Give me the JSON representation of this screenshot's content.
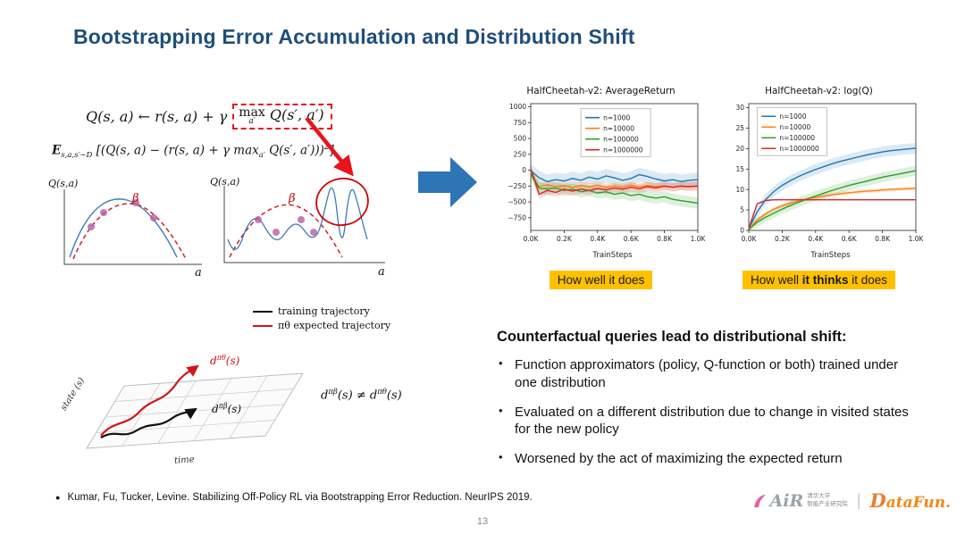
{
  "slide": {
    "title": "Bootstrapping Error Accumulation and Distribution Shift"
  },
  "equations": {
    "eq1_left": "Q(s, a) ← r(s, a) + γ",
    "eq1_max": "max",
    "eq1_max_sub": "a′",
    "eq1_tail": "Q(s′, a′)",
    "eq2_E": "E",
    "eq2_sub": "s,a,s′∼D",
    "eq2_body": "[(Q(s, a) − (r(s, a) + γ max",
    "eq2_max_sub": "a′",
    "eq2_tail": " Q(s′, a′)))",
    "eq2_sup": "2",
    "eq2_close": "]"
  },
  "sketches": {
    "q_label": "Q(s,a)",
    "a_label": "a",
    "beta": "β"
  },
  "traj": {
    "legend_black": "training trajectory",
    "legend_red": "πθ expected trajectory",
    "d": "d",
    "pi_theta": "πθ",
    "pi_beta": "πβ",
    "of_s": "(s)",
    "neq": "≠",
    "time_label": "time",
    "state_label": "state (s)"
  },
  "chart_data": [
    {
      "type": "line",
      "title": "HalfCheetah-v2: AverageReturn",
      "xlabel": "TrainSteps",
      "xlim": [
        0,
        1
      ],
      "ylim": [
        -950,
        1050
      ],
      "x_tick_values": [
        0,
        0.2,
        0.4,
        0.6,
        0.8,
        1.0
      ],
      "x_ticks": [
        "0.0K",
        "0.2K",
        "0.4K",
        "0.6K",
        "0.8K",
        "1.0K"
      ],
      "y_tick_values": [
        1000,
        750,
        500,
        250,
        0,
        -250,
        -500,
        -750
      ],
      "y_tick_labels": [
        "1000",
        "750",
        "500",
        "250",
        "0",
        "−250",
        "−500",
        "−750"
      ],
      "legend_position": "top-center",
      "legend_frac": [
        0.3,
        0.04
      ],
      "grid": false,
      "colors": [
        "#1f77b4",
        "#ff7f0e",
        "#2ca02c",
        "#d62728"
      ],
      "x": [
        0,
        0.05,
        0.1,
        0.15,
        0.2,
        0.25,
        0.3,
        0.35,
        0.4,
        0.45,
        0.5,
        0.55,
        0.6,
        0.65,
        0.7,
        0.75,
        0.8,
        0.85,
        0.9,
        0.95,
        1.0
      ],
      "series": [
        {
          "name": "n=1000",
          "band": 110,
          "values": [
            -10,
            -120,
            -180,
            -150,
            -170,
            -130,
            -160,
            -110,
            -140,
            -90,
            -120,
            -160,
            -130,
            -70,
            -100,
            -140,
            -170,
            -150,
            -180,
            -160,
            -150
          ]
        },
        {
          "name": "n=10000",
          "band": 60,
          "values": [
            -40,
            -260,
            -230,
            -260,
            -240,
            -270,
            -240,
            -260,
            -240,
            -270,
            -250,
            -270,
            -240,
            -260,
            -240,
            -260,
            -250,
            -270,
            -250,
            -260,
            -250
          ]
        },
        {
          "name": "n=100000",
          "band": 90,
          "values": [
            -60,
            -280,
            -300,
            -280,
            -320,
            -300,
            -340,
            -320,
            -360,
            -340,
            -380,
            -360,
            -400,
            -380,
            -420,
            -440,
            -420,
            -460,
            -480,
            -500,
            -520
          ]
        },
        {
          "name": "n=1000000",
          "band": 70,
          "values": [
            20,
            -380,
            -320,
            -350,
            -300,
            -330,
            -300,
            -320,
            -290,
            -310,
            -280,
            -300,
            -270,
            -290,
            -260,
            -280,
            -250,
            -270,
            -250,
            -260,
            -250
          ]
        }
      ]
    },
    {
      "type": "line",
      "title": "HalfCheetah-v2: log(Q)",
      "xlabel": "TrainSteps",
      "xlim": [
        0,
        1
      ],
      "ylim": [
        0,
        31
      ],
      "x_tick_values": [
        0,
        0.2,
        0.4,
        0.6,
        0.8,
        1.0
      ],
      "x_ticks": [
        "0.0K",
        "0.2K",
        "0.4K",
        "0.6K",
        "0.8K",
        "1.0K"
      ],
      "y_tick_values": [
        0,
        5,
        10,
        15,
        20,
        25,
        30
      ],
      "y_tick_labels": [
        "0",
        "5",
        "10",
        "15",
        "20",
        "25",
        "30"
      ],
      "legend_position": "top-left",
      "legend_frac": [
        0.05,
        0.03
      ],
      "grid": false,
      "colors": [
        "#1f77b4",
        "#ff7f0e",
        "#2ca02c",
        "#d62728"
      ],
      "x": [
        0,
        0.05,
        0.1,
        0.15,
        0.2,
        0.25,
        0.3,
        0.35,
        0.4,
        0.45,
        0.5,
        0.55,
        0.6,
        0.65,
        0.7,
        0.75,
        0.8,
        0.85,
        0.9,
        0.95,
        1.0
      ],
      "series": [
        {
          "name": "n=1000",
          "band": 1.3,
          "values": [
            0.5,
            4.5,
            7.5,
            9.5,
            11,
            12.2,
            13.2,
            14.1,
            14.9,
            15.6,
            16.3,
            16.9,
            17.4,
            17.9,
            18.4,
            18.8,
            19.2,
            19.5,
            19.7,
            19.9,
            20.1
          ]
        },
        {
          "name": "n=10000",
          "band": 0.5,
          "values": [
            0.3,
            2.5,
            4,
            5.2,
            6,
            6.7,
            7.2,
            7.7,
            8.1,
            8.4,
            8.7,
            9.0,
            9.2,
            9.4,
            9.6,
            9.7,
            9.9,
            10.0,
            10.1,
            10.2,
            10.3
          ]
        },
        {
          "name": "n=100000",
          "band": 1.2,
          "values": [
            0.2,
            2,
            3.2,
            4.2,
            5.2,
            6.1,
            6.9,
            7.7,
            8.4,
            9.1,
            9.8,
            10.4,
            11.0,
            11.5,
            12.0,
            12.5,
            13.0,
            13.4,
            13.8,
            14.2,
            14.6
          ]
        },
        {
          "name": "n=1000000",
          "band": 0.2,
          "values": [
            0.5,
            6.5,
            7.3,
            7.5,
            7.5,
            7.5,
            7.5,
            7.5,
            7.5,
            7.5,
            7.5,
            7.5,
            7.5,
            7.5,
            7.5,
            7.5,
            7.5,
            7.5,
            7.5,
            7.5,
            7.5
          ]
        }
      ]
    }
  ],
  "captions": {
    "left": "How well it does",
    "right_pre": "How well ",
    "right_bold": "it thinks",
    "right_post": " it does"
  },
  "right_panel": {
    "heading": "Counterfactual queries lead to distributional shift:",
    "bullet_char": "•",
    "bullets": [
      "Function approximators (policy, Q-function or both) trained under one distribution",
      "Evaluated on a different distribution due to change in visited states for the new policy",
      "Worsened by the act of maximizing the expected return"
    ]
  },
  "footer": {
    "bullet": "●",
    "reference": "Kumar, Fu, Tucker, Levine. Stabilizing Off-Policy RL via Bootstrapping Error Reduction. NeurIPS 2019.",
    "page_number": "13"
  },
  "logos": {
    "air_text": "AiR",
    "air_cn_1": "清华大学",
    "air_cn_2": "智能产业研究院",
    "separator": "|",
    "datafun_d": "D",
    "datafun_rest": "ataFun."
  },
  "colors": {
    "title": "#1F4E79",
    "highlight_yellow": "#FFC000",
    "annotation_red": "#E8131C",
    "arrow_blue": "#2E75B6"
  }
}
